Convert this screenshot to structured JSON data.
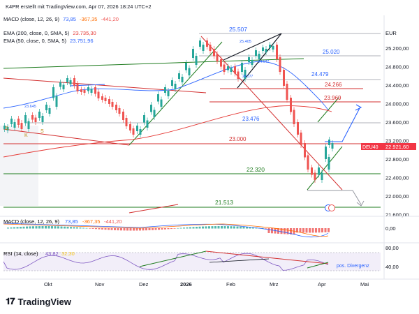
{
  "header": {
    "title": "K4PR erstellt mit TradingView.com, Apr 07, 2026 18:24 UTC+2"
  },
  "main_panel": {
    "legend": {
      "macd_label": "MACD (close, 12, 26, 9)",
      "macd_values": [
        "73,85",
        "-367,35",
        "-441,20"
      ],
      "ema200_label": "EMA (200, close, 0, SMA, 5)",
      "ema200_value": "23.735,30",
      "ema50_label": "EMA (50, close, 0, SMA, 5)",
      "ema50_value": "23.751,96"
    },
    "currency": "EUR",
    "price_ticks": [
      "25.200,00",
      "24.800,00",
      "24.400,00",
      "24.000,00",
      "23.600,00",
      "23.200,00",
      "22.800,00",
      "22.400,00",
      "22.000,00",
      "21.600,00"
    ],
    "current_price": "22.921,60",
    "symbol_tag": "DEU40",
    "level_labels": {
      "l25507": "25.507",
      "l25405": "25.405",
      "l25020": "25.020",
      "l24947": "24.947",
      "l24577": "24.577",
      "l24479": "24.479",
      "l24266": "24.266",
      "l23969": "23.969",
      "l23476": "23.476",
      "l23000": "23.000",
      "l22320": "22.320",
      "l21513": "21.513",
      "l23645": "23.645"
    },
    "markers": [
      "S",
      "K",
      "S"
    ]
  },
  "macd_panel": {
    "label": "MACD (close, 12, 26, 9)",
    "values": [
      "73,85",
      "-367,35",
      "-441,20"
    ],
    "tick": "0,00"
  },
  "rsi_panel": {
    "label": "RSI (14, close)",
    "values": [
      "43,82",
      "32,30"
    ],
    "ticks": [
      "80,00",
      "40,00"
    ],
    "annotation": "pos. Divergenz"
  },
  "time_axis": [
    "Okt",
    "Nov",
    "Dez",
    "2026",
    "Feb",
    "Mrz",
    "Apr",
    "Mai"
  ],
  "footer": {
    "brand": "TradingView"
  },
  "colors": {
    "up": "#26a69a",
    "down": "#ef5350",
    "level_line": "#2a2e39",
    "support": "#1e7b1e",
    "resistance": "#d32f2f",
    "ema200": "#e53935",
    "ema50": "#2962ff",
    "price_tag": "#f23645"
  },
  "icons": [
    "tv-logo-icon",
    "arrow-up-projection-icon",
    "arrow-down-projection-icon"
  ]
}
